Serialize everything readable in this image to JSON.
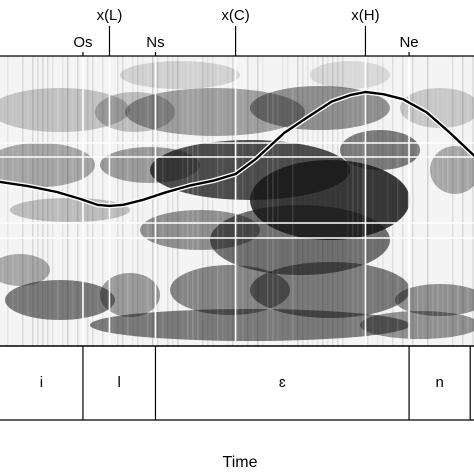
{
  "chart_data": {
    "type": "line",
    "title": "",
    "xlabel": "Time",
    "ylabel": "",
    "grid": false,
    "landmarks": [
      {
        "label": "x(L)",
        "kind": "pitch-target",
        "t": 0.231
      },
      {
        "label": "Os",
        "kind": "segment-boundary",
        "t": 0.175
      },
      {
        "label": "Ns",
        "kind": "segment-boundary",
        "t": 0.328
      },
      {
        "label": "x(C)",
        "kind": "pitch-target",
        "t": 0.497
      },
      {
        "label": "x(H)",
        "kind": "pitch-target",
        "t": 0.771
      },
      {
        "label": "Ne",
        "kind": "segment-boundary",
        "t": 0.863
      }
    ],
    "segments": [
      {
        "label": "i",
        "start": 0.0,
        "end": 0.175
      },
      {
        "label": "l",
        "start": 0.175,
        "end": 0.328
      },
      {
        "label": "ɛ",
        "start": 0.328,
        "end": 0.863
      },
      {
        "label": "n",
        "start": 0.863,
        "end": 0.992
      }
    ],
    "series": [
      {
        "values": [
          {
            "t": 0.0,
            "f": 0.566
          },
          {
            "t": 0.06,
            "f": 0.551
          },
          {
            "t": 0.12,
            "f": 0.531
          },
          {
            "t": 0.17,
            "f": 0.507
          },
          {
            "t": 0.205,
            "f": 0.487
          },
          {
            "t": 0.231,
            "f": 0.483
          },
          {
            "t": 0.26,
            "f": 0.487
          },
          {
            "t": 0.3,
            "f": 0.503
          },
          {
            "t": 0.35,
            "f": 0.53
          },
          {
            "t": 0.4,
            "f": 0.553
          },
          {
            "t": 0.45,
            "f": 0.57
          },
          {
            "t": 0.497,
            "f": 0.593
          },
          {
            "t": 0.54,
            "f": 0.645
          },
          {
            "t": 0.6,
            "f": 0.735
          },
          {
            "t": 0.65,
            "f": 0.79
          },
          {
            "t": 0.7,
            "f": 0.843
          },
          {
            "t": 0.74,
            "f": 0.866
          },
          {
            "t": 0.771,
            "f": 0.876
          },
          {
            "t": 0.81,
            "f": 0.868
          },
          {
            "t": 0.85,
            "f": 0.851
          },
          {
            "t": 0.9,
            "f": 0.806
          },
          {
            "t": 0.95,
            "f": 0.734
          },
          {
            "t": 1.0,
            "f": 0.657
          }
        ]
      }
    ]
  },
  "colors": {
    "background": "#ffffff",
    "spectrogram_light": "#f4f4f4",
    "spectrogram_dark": "#161616",
    "contour_outer": "#ffffff",
    "contour_inner": "#000000",
    "lines": "#000000"
  }
}
